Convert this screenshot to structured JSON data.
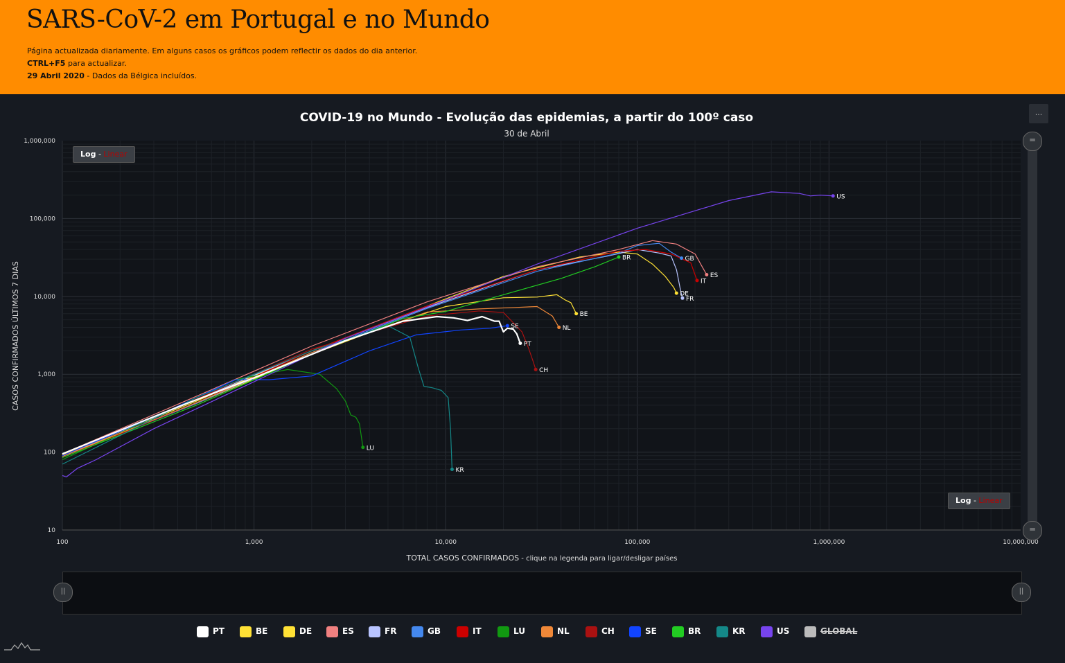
{
  "header": {
    "title": "SARS-CoV-2 em Portugal e no Mundo",
    "line1": "Página actualizada diariamente. Em alguns casos os gráficos podem reflectir os dados do dia anterior.",
    "line2_bold": "CTRL+F5",
    "line2_rest": " para actualizar.",
    "line3_bold": "29 Abril 2020",
    "line3_rest": " - Dados da Bélgica incluídos."
  },
  "controls": {
    "menu_label": "...",
    "scale_log": "Log",
    "scale_sep": " - ",
    "scale_linear": "Linear"
  },
  "chart_data": {
    "type": "line",
    "title": "COVID-19 no Mundo - Evolução das epidemias, a partir do 100º caso",
    "subtitle": "30 de Abril",
    "xlabel": "TOTAL CASOS CONFIRMADOS",
    "xlabel_note": " - clique na legenda para ligar/desligar países",
    "ylabel": "CASOS CONFIRMADOS ÚLTIMOS 7 DIAS",
    "xscale": "log",
    "yscale": "log",
    "xlim": [
      100,
      10000000
    ],
    "ylim": [
      10,
      1000000
    ],
    "x_ticks": [
      "100",
      "1,000",
      "10,000",
      "100,000",
      "1,000,000",
      "10,000,000"
    ],
    "y_ticks": [
      "10",
      "100",
      "1,000",
      "10,000",
      "100,000",
      "1,000,000"
    ],
    "grid": true,
    "legend_position": "bottom",
    "series": [
      {
        "name": "PT",
        "color": "#ffffff",
        "width": 2.2,
        "points": [
          [
            100,
            95
          ],
          [
            400,
            380
          ],
          [
            1000,
            900
          ],
          [
            3000,
            2700
          ],
          [
            6000,
            4800
          ],
          [
            9000,
            5500
          ],
          [
            11000,
            5300
          ],
          [
            13000,
            4900
          ],
          [
            15500,
            5500
          ],
          [
            18000,
            4800
          ],
          [
            19000,
            4800
          ],
          [
            20000,
            3500
          ],
          [
            21000,
            3900
          ],
          [
            22500,
            3800
          ],
          [
            23500,
            3300
          ],
          [
            24500,
            2500
          ]
        ]
      },
      {
        "name": "BE",
        "color": "#ffe135",
        "width": 1.2,
        "points": [
          [
            100,
            90
          ],
          [
            500,
            420
          ],
          [
            2000,
            1800
          ],
          [
            5000,
            4200
          ],
          [
            10000,
            7400
          ],
          [
            20000,
            9600
          ],
          [
            30000,
            9800
          ],
          [
            38000,
            10500
          ],
          [
            42000,
            9000
          ],
          [
            45000,
            8300
          ],
          [
            48000,
            6000
          ]
        ]
      },
      {
        "name": "DE",
        "color": "#ffe135",
        "width": 1.2,
        "points": [
          [
            100,
            92
          ],
          [
            500,
            450
          ],
          [
            2000,
            2000
          ],
          [
            8000,
            7500
          ],
          [
            20000,
            18000
          ],
          [
            50000,
            32000
          ],
          [
            80000,
            37000
          ],
          [
            100000,
            35000
          ],
          [
            120000,
            26000
          ],
          [
            140000,
            18000
          ],
          [
            155000,
            13000
          ],
          [
            160000,
            11000
          ]
        ]
      },
      {
        "name": "ES",
        "color": "#f08080",
        "width": 1.2,
        "points": [
          [
            100,
            95
          ],
          [
            500,
            520
          ],
          [
            2000,
            2300
          ],
          [
            8000,
            8500
          ],
          [
            30000,
            24000
          ],
          [
            80000,
            40000
          ],
          [
            120000,
            52000
          ],
          [
            160000,
            47000
          ],
          [
            200000,
            35000
          ],
          [
            220000,
            23000
          ],
          [
            230000,
            19000
          ]
        ]
      },
      {
        "name": "FR",
        "color": "#b8c4ff",
        "width": 1.2,
        "points": [
          [
            100,
            90
          ],
          [
            500,
            470
          ],
          [
            2000,
            2000
          ],
          [
            8000,
            7200
          ],
          [
            30000,
            22000
          ],
          [
            70000,
            33000
          ],
          [
            100000,
            40000
          ],
          [
            130000,
            36000
          ],
          [
            150000,
            33000
          ],
          [
            160000,
            22000
          ],
          [
            168000,
            12000
          ],
          [
            172000,
            9500
          ]
        ]
      },
      {
        "name": "GB",
        "color": "#4488ee",
        "width": 1.2,
        "points": [
          [
            100,
            88
          ],
          [
            500,
            420
          ],
          [
            2000,
            1900
          ],
          [
            8000,
            7000
          ],
          [
            30000,
            21000
          ],
          [
            80000,
            36000
          ],
          [
            100000,
            45000
          ],
          [
            130000,
            48000
          ],
          [
            150000,
            37000
          ],
          [
            170000,
            31000
          ]
        ]
      },
      {
        "name": "IT",
        "color": "#cc0000",
        "width": 1.2,
        "points": [
          [
            100,
            85
          ],
          [
            500,
            430
          ],
          [
            2000,
            2000
          ],
          [
            8000,
            7500
          ],
          [
            30000,
            22000
          ],
          [
            80000,
            38000
          ],
          [
            110000,
            40000
          ],
          [
            150000,
            35000
          ],
          [
            190000,
            27000
          ],
          [
            205000,
            16000
          ]
        ]
      },
      {
        "name": "LU",
        "color": "#119911",
        "width": 1.2,
        "points": [
          [
            100,
            80
          ],
          [
            800,
            850
          ],
          [
            1500,
            1150
          ],
          [
            2200,
            1000
          ],
          [
            2700,
            650
          ],
          [
            3000,
            450
          ],
          [
            3200,
            300
          ],
          [
            3400,
            280
          ],
          [
            3550,
            230
          ],
          [
            3700,
            115
          ]
        ]
      },
      {
        "name": "NL",
        "color": "#f08838",
        "width": 1.2,
        "points": [
          [
            100,
            88
          ],
          [
            500,
            430
          ],
          [
            2000,
            1900
          ],
          [
            8000,
            6300
          ],
          [
            15000,
            6900
          ],
          [
            23000,
            7200
          ],
          [
            30000,
            7400
          ],
          [
            36000,
            5600
          ],
          [
            39000,
            4000
          ]
        ]
      },
      {
        "name": "CH",
        "color": "#aa1111",
        "width": 1.2,
        "points": [
          [
            100,
            90
          ],
          [
            500,
            480
          ],
          [
            2000,
            2100
          ],
          [
            8000,
            5600
          ],
          [
            15000,
            6500
          ],
          [
            20000,
            6200
          ],
          [
            25000,
            3500
          ],
          [
            27000,
            2200
          ],
          [
            28500,
            1500
          ],
          [
            29500,
            1150
          ]
        ]
      },
      {
        "name": "SE",
        "color": "#1144ff",
        "width": 1.2,
        "points": [
          [
            100,
            90
          ],
          [
            300,
            280
          ],
          [
            800,
            850
          ],
          [
            1200,
            850
          ],
          [
            2000,
            950
          ],
          [
            4000,
            2000
          ],
          [
            7000,
            3200
          ],
          [
            12000,
            3700
          ],
          [
            17000,
            3900
          ],
          [
            21000,
            4200
          ]
        ]
      },
      {
        "name": "BR",
        "color": "#22cc22",
        "width": 1.2,
        "points": [
          [
            100,
            85
          ],
          [
            500,
            400
          ],
          [
            2000,
            1800
          ],
          [
            6000,
            5200
          ],
          [
            10000,
            6400
          ],
          [
            20000,
            10500
          ],
          [
            40000,
            17000
          ],
          [
            60000,
            24000
          ],
          [
            80000,
            32000
          ]
        ]
      },
      {
        "name": "KR",
        "color": "#148888",
        "width": 1.2,
        "points": [
          [
            100,
            70
          ],
          [
            500,
            500
          ],
          [
            2000,
            2000
          ],
          [
            5000,
            4200
          ],
          [
            6500,
            3000
          ],
          [
            7200,
            1200
          ],
          [
            7700,
            700
          ],
          [
            8500,
            670
          ],
          [
            9500,
            620
          ],
          [
            10300,
            500
          ],
          [
            10600,
            200
          ],
          [
            10800,
            60
          ]
        ]
      },
      {
        "name": "US",
        "color": "#7744ee",
        "width": 1.2,
        "points": [
          [
            100,
            50
          ],
          [
            105,
            48
          ],
          [
            120,
            62
          ],
          [
            150,
            80
          ],
          [
            300,
            200
          ],
          [
            1000,
            800
          ],
          [
            3000,
            2900
          ],
          [
            10000,
            9000
          ],
          [
            30000,
            26000
          ],
          [
            100000,
            75000
          ],
          [
            300000,
            170000
          ],
          [
            500000,
            220000
          ],
          [
            700000,
            210000
          ],
          [
            800000,
            195000
          ],
          [
            900000,
            200000
          ],
          [
            1050000,
            195000
          ]
        ]
      }
    ],
    "series_hidden": [
      "GLOBAL"
    ]
  },
  "legend": [
    {
      "label": "PT",
      "color": "#ffffff",
      "enabled": true
    },
    {
      "label": "BE",
      "color": "#ffe135",
      "enabled": true
    },
    {
      "label": "DE",
      "color": "#ffe135",
      "enabled": true
    },
    {
      "label": "ES",
      "color": "#f08080",
      "enabled": true
    },
    {
      "label": "FR",
      "color": "#b8c4ff",
      "enabled": true
    },
    {
      "label": "GB",
      "color": "#4488ee",
      "enabled": true
    },
    {
      "label": "IT",
      "color": "#cc0000",
      "enabled": true
    },
    {
      "label": "LU",
      "color": "#119911",
      "enabled": true
    },
    {
      "label": "NL",
      "color": "#f08838",
      "enabled": true
    },
    {
      "label": "CH",
      "color": "#aa1111",
      "enabled": true
    },
    {
      "label": "SE",
      "color": "#1144ff",
      "enabled": true
    },
    {
      "label": "BR",
      "color": "#22cc22",
      "enabled": true
    },
    {
      "label": "KR",
      "color": "#148888",
      "enabled": true
    },
    {
      "label": "US",
      "color": "#7744ee",
      "enabled": true
    },
    {
      "label": "GLOBAL",
      "color": "#bbbbbb",
      "enabled": false
    }
  ]
}
